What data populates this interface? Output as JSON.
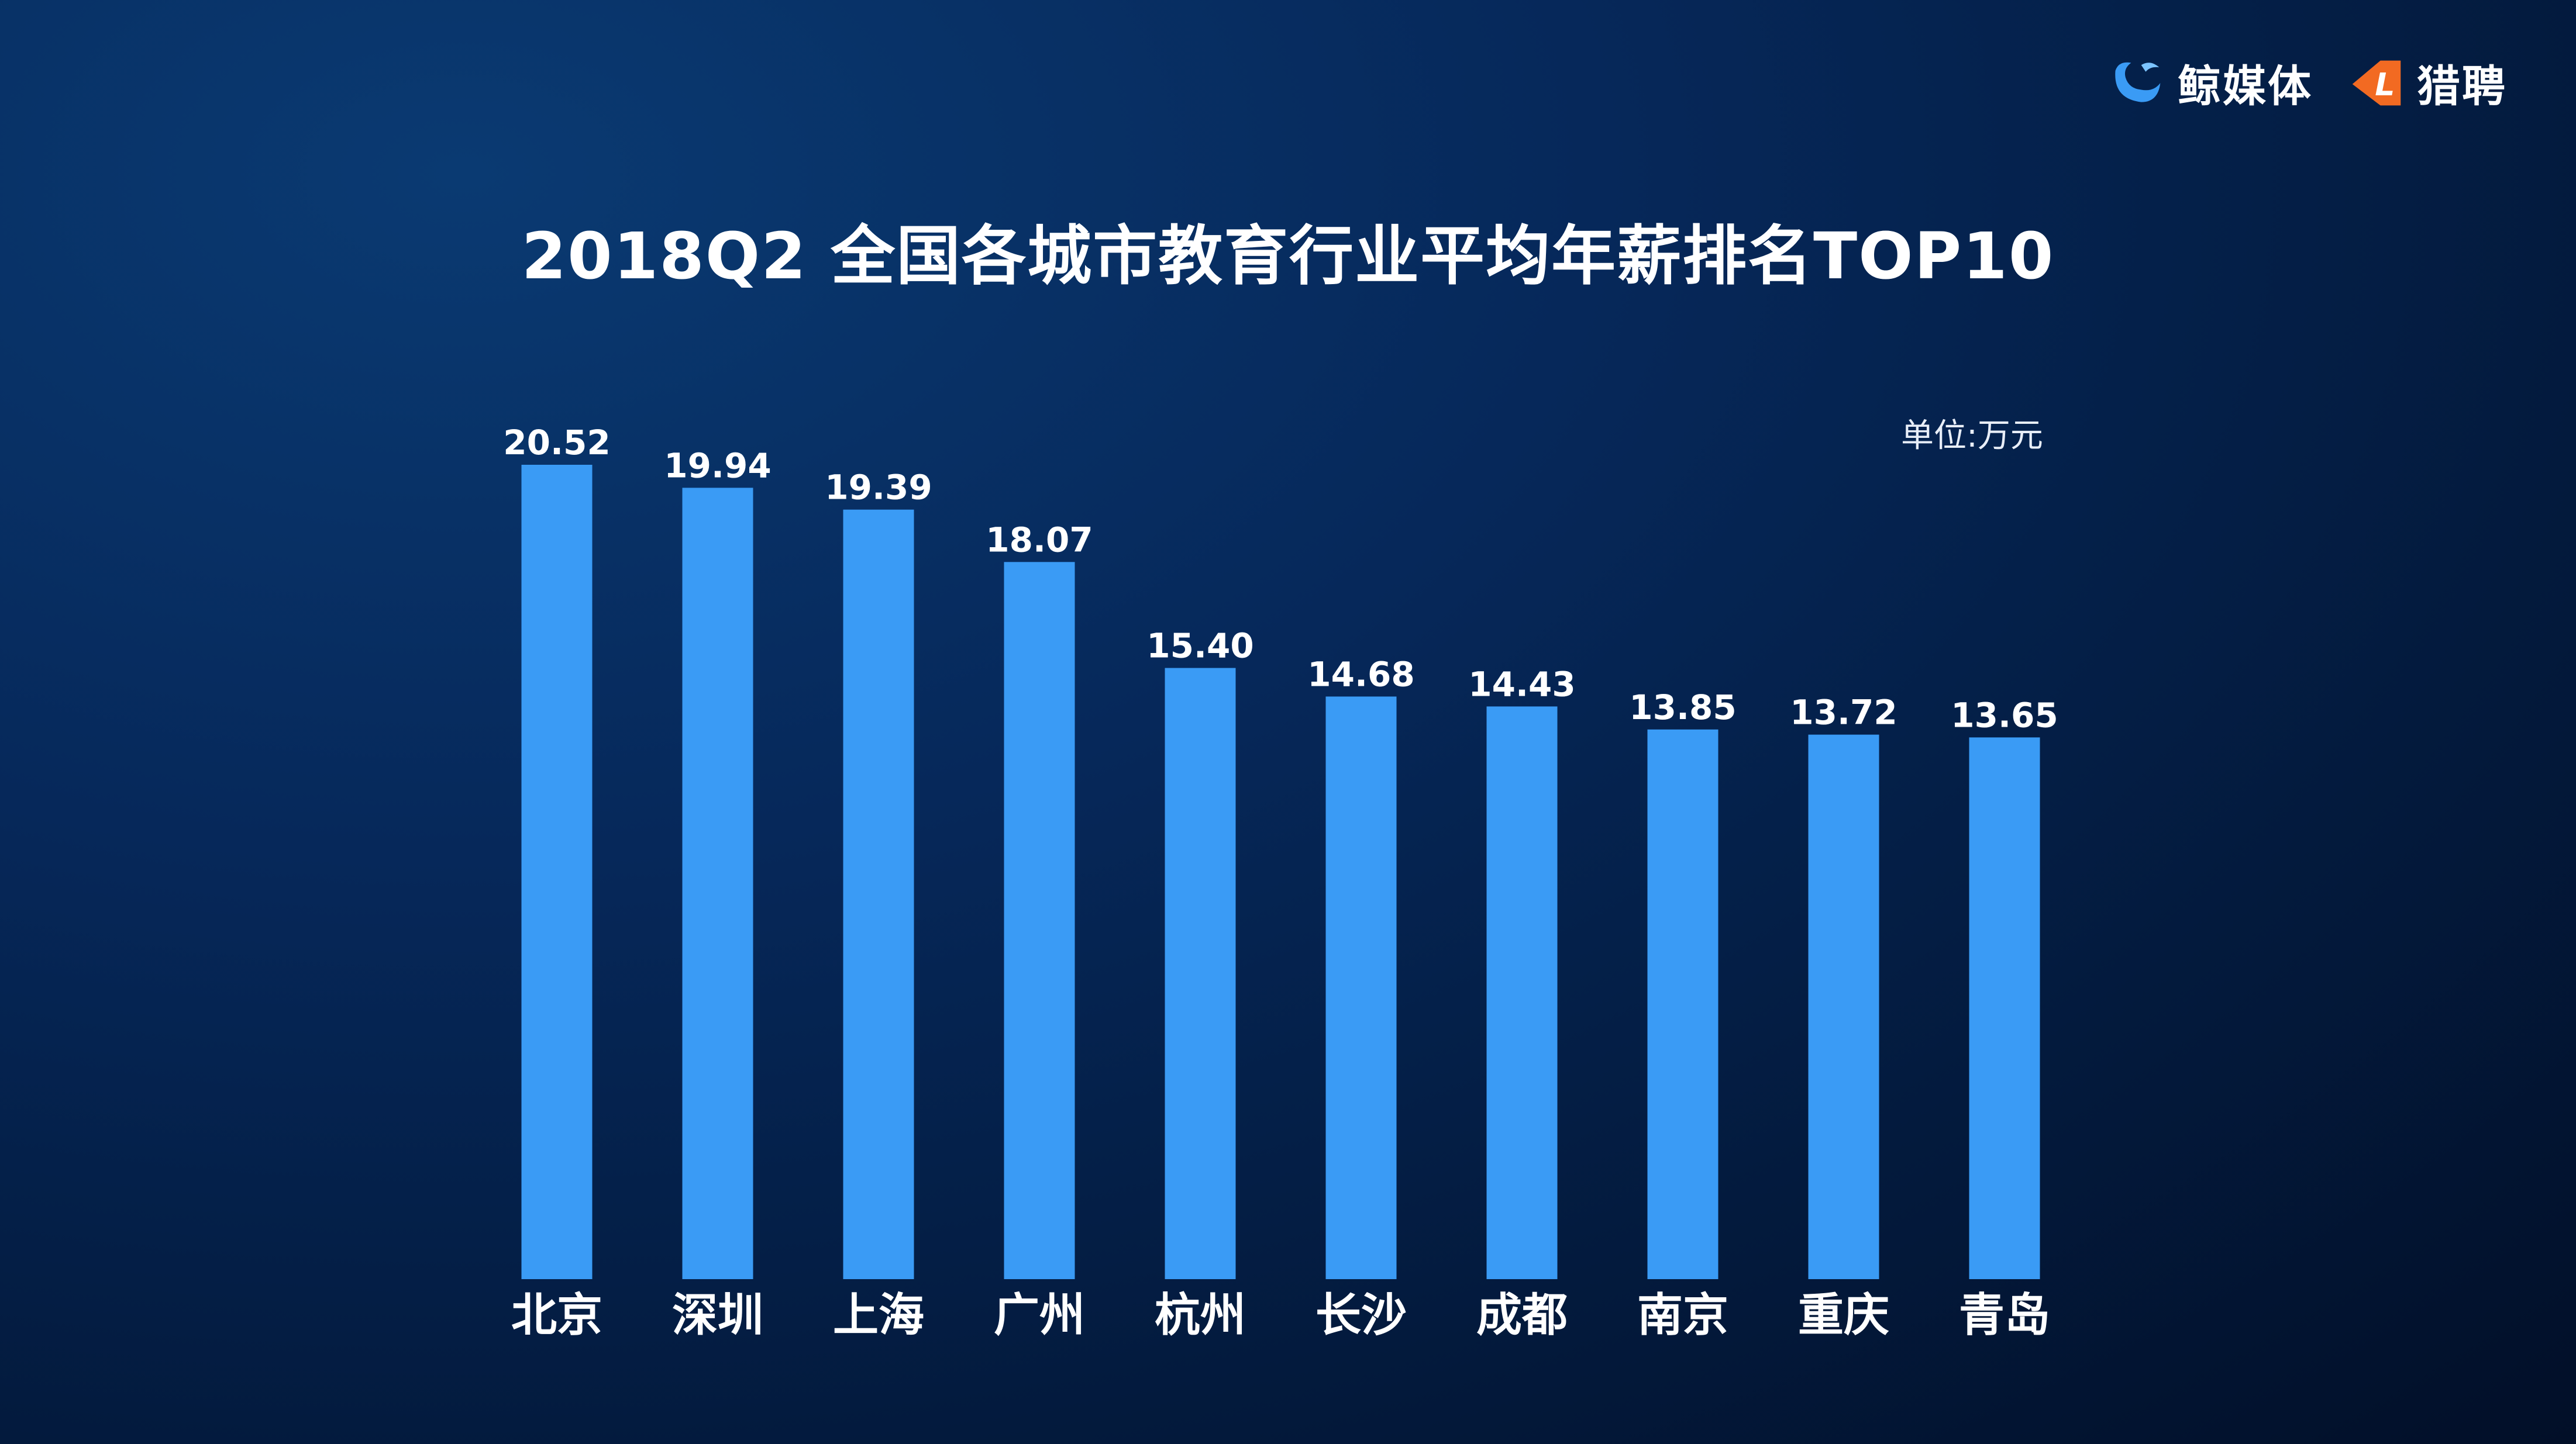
{
  "brand": {
    "logo1_name": "鲸媒体",
    "logo2_name": "猎聘",
    "logo2_letter": "L",
    "icons": [
      "whale-logo-icon",
      "liepin-logo-icon"
    ]
  },
  "colors": {
    "bar": "#3a9bf5",
    "logo_blue": "#3a9bf5",
    "logo_orange": "#f26a22"
  },
  "chart_data": {
    "type": "bar",
    "title": "2018Q2 全国各城市教育行业平均年薪排名TOP10",
    "unit_label": "单位:万元",
    "categories": [
      "北京",
      "深圳",
      "上海",
      "广州",
      "杭州",
      "长沙",
      "成都",
      "南京",
      "重庆",
      "青岛"
    ],
    "values": [
      20.52,
      19.94,
      19.39,
      18.07,
      15.4,
      14.68,
      14.43,
      13.85,
      13.72,
      13.65
    ],
    "value_labels": [
      "20.52",
      "19.94",
      "19.39",
      "18.07",
      "15.40",
      "14.68",
      "14.43",
      "13.85",
      "13.72",
      "13.65"
    ],
    "ylim": [
      0,
      20.52
    ],
    "grid": false,
    "legend": "none"
  }
}
